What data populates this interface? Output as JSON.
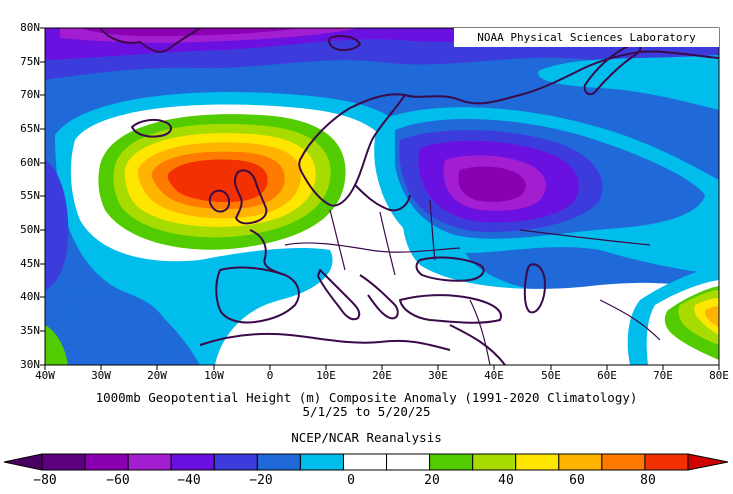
{
  "credit": "NOAA Physical Sciences Laboratory",
  "title_line1": "1000mb Geopotential Height (m) Composite Anomaly (1991-2020 Climatology)",
  "title_line2": "5/1/25  to 5/20/25",
  "title_line3": "NCEP/NCAR Reanalysis",
  "lat_labels": [
    "80N",
    "75N",
    "70N",
    "65N",
    "60N",
    "55N",
    "50N",
    "45N",
    "40N",
    "35N",
    "30N"
  ],
  "lon_labels": [
    "40W",
    "30W",
    "20W",
    "10W",
    "0",
    "10E",
    "20E",
    "30E",
    "40E",
    "50E",
    "60E",
    "70E",
    "80E"
  ],
  "colorbar": {
    "ticks": [
      "−80",
      "−60",
      "−40",
      "−20",
      "0",
      "20",
      "40",
      "60",
      "80"
    ],
    "colors": [
      "#5c0080",
      "#8a00b0",
      "#a21ed0",
      "#6a10e0",
      "#3c3cdc",
      "#1f6ad8",
      "#00bdec",
      "#ffffff",
      "#ffffff",
      "#52cc00",
      "#a8dc00",
      "#ffe600",
      "#ffb400",
      "#ff7a00",
      "#f23000"
    ],
    "low_arrow_color": "#4a0060",
    "high_arrow_color": "#d00000"
  },
  "map_data": {
    "extent": {
      "lon": [
        -40,
        80
      ],
      "lat": [
        30,
        80
      ]
    },
    "centers": [
      {
        "type": "high",
        "lon": -12,
        "lat": 58,
        "peak_anomaly": 70
      },
      {
        "type": "low",
        "lon": 38,
        "lat": 57,
        "peak_anomaly": -45
      },
      {
        "type": "low",
        "lon": -25,
        "lat": 80,
        "peak_anomaly": -55
      },
      {
        "type": "high",
        "lon": 78,
        "lat": 37,
        "peak_anomaly": 30
      }
    ]
  }
}
